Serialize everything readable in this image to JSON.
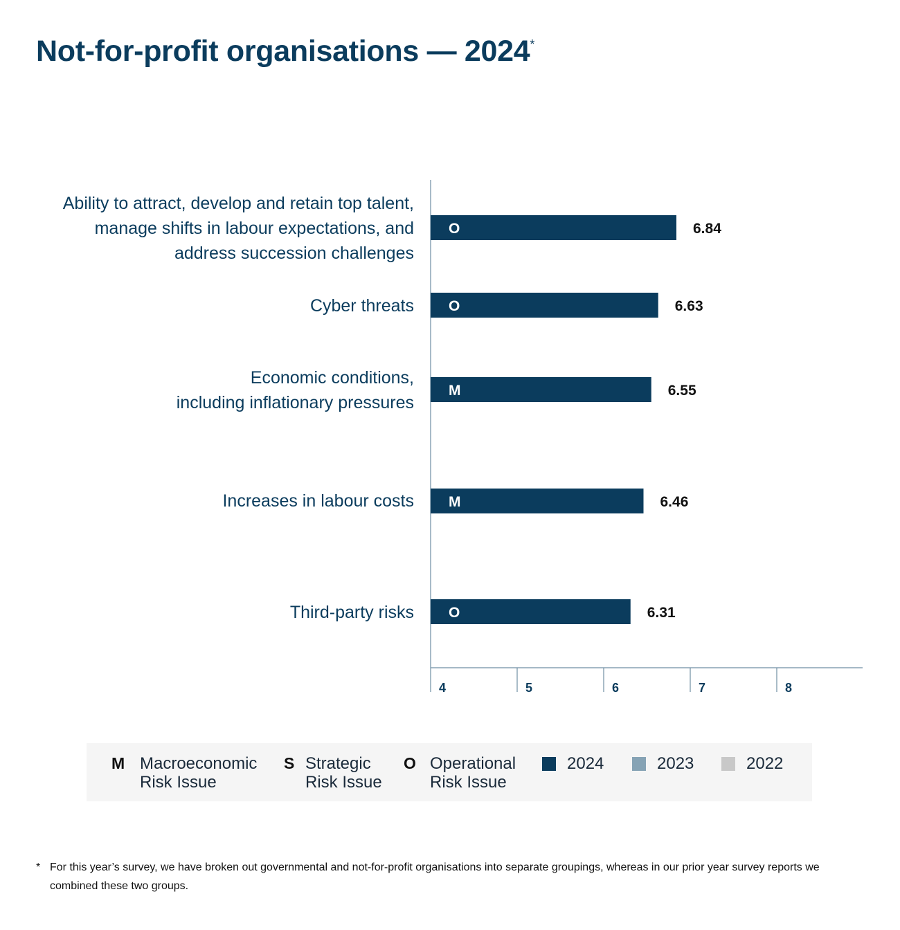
{
  "title": "Not-for-profit organisations — 2024",
  "title_marker": "*",
  "chart_data": {
    "type": "bar",
    "orientation": "horizontal",
    "categories": [
      "Ability to attract, develop and retain top talent,\nmanage shifts in labour expectations, and\naddress succession challenges",
      "Cyber threats",
      "Economic conditions,\nincluding inflationary pressures",
      "Increases in labour costs",
      "Third-party risks"
    ],
    "series": [
      {
        "name": "2024",
        "values": [
          6.84,
          6.63,
          6.55,
          6.46,
          6.31
        ]
      }
    ],
    "risk_codes": [
      "O",
      "O",
      "M",
      "M",
      "O"
    ],
    "data_labels": [
      "6.84",
      "6.63",
      "6.55",
      "6.46",
      "6.31"
    ],
    "xlim": [
      4,
      9
    ],
    "xticks": [
      "4",
      "5",
      "6",
      "7",
      "8"
    ],
    "grid": false,
    "colors": {
      "bar": "#0b3c5d",
      "axis": "#6f8ea3",
      "tick_text": "#0b3c5d"
    }
  },
  "legend": {
    "risk_types": [
      {
        "code": "M",
        "label_line1": "Macroeconomic",
        "label_line2": "Risk Issue"
      },
      {
        "code": "S",
        "label_line1": "Strategic",
        "label_line2": "Risk Issue"
      },
      {
        "code": "O",
        "label_line1": "Operational",
        "label_line2": "Risk Issue"
      }
    ],
    "years": [
      {
        "label": "2024",
        "color": "#0b3c5d"
      },
      {
        "label": "2023",
        "color": "#86a3b5"
      },
      {
        "label": "2022",
        "color": "#c8c8c8"
      }
    ]
  },
  "footnote": {
    "mark": "*",
    "text": "For this year’s survey, we have broken out governmental and not-for-profit organisations into separate groupings, whereas in our prior year survey reports we combined these two groups."
  }
}
